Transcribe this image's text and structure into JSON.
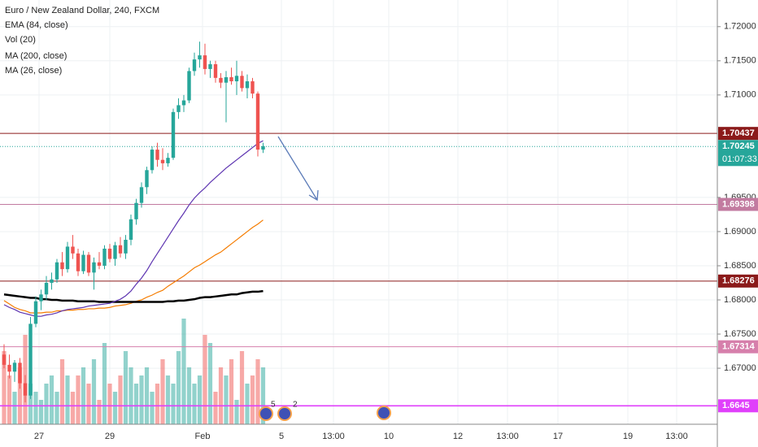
{
  "chart_data": {
    "type": "candlestick",
    "title": "Euro / New Zealand Dollar, 240, FXCM",
    "ylim": [
      1.6618,
      1.7239
    ],
    "yticks": [
      {
        "value": 1.67,
        "label": "1.67000"
      },
      {
        "value": 1.675,
        "label": "1.67500"
      },
      {
        "value": 1.68,
        "label": "1.68000"
      },
      {
        "value": 1.685,
        "label": "1.68500"
      },
      {
        "value": 1.69,
        "label": "1.69000"
      },
      {
        "value": 1.695,
        "label": "1.69500"
      },
      {
        "value": 1.71,
        "label": "1.71000"
      },
      {
        "value": 1.715,
        "label": "1.71500"
      },
      {
        "value": 1.72,
        "label": "1.72000"
      }
    ],
    "grid": true,
    "x_labels": [
      "27",
      "29",
      "Feb",
      "5",
      "13:00",
      "10",
      "12",
      "13:00",
      "17",
      "19",
      "13:00"
    ],
    "up_color": "#26a69a",
    "down_color": "#ef5350",
    "open": [
      1.672,
      1.6705,
      1.6695,
      1.6708,
      1.6678,
      1.666,
      1.6765,
      1.6798,
      1.6808,
      1.6825,
      1.683,
      1.6855,
      1.6845,
      1.6878,
      1.6868,
      1.6842,
      1.6866,
      1.684,
      1.6855,
      1.685,
      1.6875,
      1.686,
      1.688,
      1.6868,
      1.6888,
      1.6918,
      1.6942,
      1.6965,
      1.699,
      1.702,
      1.7005,
      1.7,
      1.7008,
      1.7075,
      1.7085,
      1.7092,
      1.7135,
      1.7152,
      1.7158,
      1.7138,
      1.7145,
      1.7125,
      1.7118,
      1.7126,
      1.712,
      1.7128,
      1.711,
      1.712,
      1.7102,
      1.702
    ],
    "high": [
      1.6735,
      1.672,
      1.6712,
      1.6715,
      1.669,
      1.6775,
      1.6805,
      1.6815,
      1.6835,
      1.684,
      1.686,
      1.687,
      1.6885,
      1.6895,
      1.6875,
      1.6872,
      1.687,
      1.6862,
      1.687,
      1.688,
      1.6882,
      1.6885,
      1.6892,
      1.6895,
      1.6925,
      1.6948,
      1.6972,
      1.6995,
      1.7025,
      1.703,
      1.7022,
      1.7015,
      1.708,
      1.7095,
      1.71,
      1.714,
      1.7162,
      1.7178,
      1.7175,
      1.715,
      1.715,
      1.7132,
      1.7135,
      1.714,
      1.715,
      1.7135,
      1.713,
      1.7125,
      1.7105,
      1.703
    ],
    "low": [
      1.67,
      1.6685,
      1.668,
      1.667,
      1.665,
      1.6655,
      1.676,
      1.6785,
      1.68,
      1.6815,
      1.6825,
      1.6835,
      1.684,
      1.686,
      1.6835,
      1.6838,
      1.6835,
      1.6815,
      1.6845,
      1.6845,
      1.6855,
      1.685,
      1.6862,
      1.686,
      1.688,
      1.691,
      1.6935,
      1.6955,
      1.6985,
      1.6995,
      1.699,
      1.6995,
      1.7005,
      1.7065,
      1.7075,
      1.7088,
      1.7128,
      1.714,
      1.713,
      1.7125,
      1.7118,
      1.711,
      1.706,
      1.7115,
      1.71,
      1.7105,
      1.7095,
      1.7095,
      1.701,
      1.7015
    ],
    "close": [
      1.6705,
      1.6695,
      1.6708,
      1.6678,
      1.666,
      1.6765,
      1.6798,
      1.6808,
      1.6825,
      1.683,
      1.6855,
      1.6845,
      1.6878,
      1.6868,
      1.6842,
      1.6866,
      1.684,
      1.6855,
      1.685,
      1.6875,
      1.686,
      1.688,
      1.6868,
      1.6888,
      1.6918,
      1.6942,
      1.6965,
      1.699,
      1.702,
      1.7005,
      1.7,
      1.7008,
      1.7075,
      1.7085,
      1.7092,
      1.7135,
      1.7152,
      1.7158,
      1.7138,
      1.7145,
      1.7125,
      1.7118,
      1.7126,
      1.712,
      1.7128,
      1.711,
      1.712,
      1.7102,
      1.702,
      1.7025
    ],
    "volume": {
      "name": "Vol (20)",
      "values": [
        90,
        60,
        40,
        70,
        110,
        50,
        40,
        30,
        50,
        60,
        40,
        80,
        60,
        40,
        60,
        70,
        50,
        80,
        30,
        100,
        50,
        40,
        60,
        90,
        70,
        50,
        60,
        70,
        40,
        50,
        80,
        60,
        50,
        90,
        130,
        70,
        50,
        60,
        110,
        100,
        40,
        70,
        60,
        80,
        30,
        90,
        50,
        60,
        80,
        70
      ]
    },
    "series": [
      {
        "name": "EMA (84, close)",
        "color": "#f57c00",
        "values": [
          1.6799,
          1.6794,
          1.6789,
          1.6786,
          1.6784,
          1.6781,
          1.6781,
          1.6781,
          1.6782,
          1.6782,
          1.6784,
          1.6784,
          1.6785,
          1.6785,
          1.6786,
          1.6786,
          1.6787,
          1.6787,
          1.6788,
          1.6788,
          1.6789,
          1.6791,
          1.6792,
          1.6793,
          1.6795,
          1.6798,
          1.68,
          1.6804,
          1.6807,
          1.6811,
          1.6814,
          1.682,
          1.6825,
          1.683,
          1.6835,
          1.6841,
          1.6847,
          1.6851,
          1.6856,
          1.6861,
          1.6866,
          1.687,
          1.6876,
          1.6882,
          1.6888,
          1.6894,
          1.69,
          1.6906,
          1.6911,
          1.6917
        ]
      },
      {
        "name": "MA (200, close)",
        "color": "#000000",
        "values": [
          1.6808,
          1.6807,
          1.6806,
          1.6805,
          1.6804,
          1.6803,
          1.6803,
          1.6801,
          1.6801,
          1.68,
          1.68,
          1.6799,
          1.6799,
          1.6799,
          1.6798,
          1.6798,
          1.6798,
          1.6798,
          1.6797,
          1.6797,
          1.6797,
          1.6797,
          1.6797,
          1.6797,
          1.6797,
          1.6797,
          1.6797,
          1.6797,
          1.6797,
          1.6797,
          1.6797,
          1.6798,
          1.6798,
          1.6799,
          1.6799,
          1.68,
          1.6801,
          1.6803,
          1.6804,
          1.6804,
          1.6805,
          1.6806,
          1.6807,
          1.6808,
          1.6808,
          1.681,
          1.6811,
          1.6812,
          1.6812,
          1.6813
        ]
      },
      {
        "name": "MA (26, close)",
        "color": "#5e35b1",
        "values": [
          1.6793,
          1.6789,
          1.6786,
          1.6782,
          1.678,
          1.6778,
          1.6776,
          1.6776,
          1.6778,
          1.6779,
          1.6781,
          1.6784,
          1.6786,
          1.6787,
          1.6788,
          1.6789,
          1.6791,
          1.6792,
          1.6793,
          1.6794,
          1.6795,
          1.6798,
          1.6801,
          1.6806,
          1.6813,
          1.6823,
          1.6832,
          1.6843,
          1.6856,
          1.6868,
          1.688,
          1.6892,
          1.6904,
          1.6916,
          1.6927,
          1.6939,
          1.6949,
          1.6957,
          1.6964,
          1.6972,
          1.6979,
          1.6986,
          1.6993,
          1.6999,
          1.7005,
          1.7011,
          1.7017,
          1.7023,
          1.7029,
          1.7033
        ]
      }
    ],
    "levels": [
      {
        "value": 1.70437,
        "color": "#8b1a1a"
      },
      {
        "value": 1.69398,
        "color": "#c27ba0"
      },
      {
        "value": 1.68276,
        "color": "#8b1a1a"
      },
      {
        "value": 1.67314,
        "color": "#d67fab"
      },
      {
        "value": 1.6645,
        "color": "#e040fb"
      }
    ],
    "current_price": {
      "value": 1.70245,
      "color": "#26a69a",
      "countdown": "01:07:33"
    },
    "events": [
      "5",
      "2"
    ]
  }
}
